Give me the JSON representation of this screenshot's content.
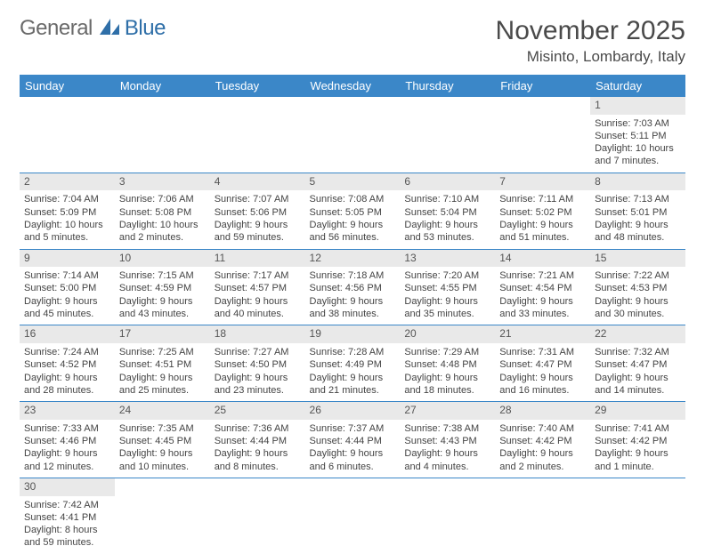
{
  "logo": {
    "part1": "General",
    "part2": "Blue"
  },
  "title": "November 2025",
  "location": "Misinto, Lombardy, Italy",
  "dayHeaders": [
    "Sunday",
    "Monday",
    "Tuesday",
    "Wednesday",
    "Thursday",
    "Friday",
    "Saturday"
  ],
  "colors": {
    "headerBg": "#3b87c8",
    "dayNumBg": "#e9e9e9",
    "logoBlue": "#2f6fa8",
    "logoGray": "#6a6a6a"
  },
  "weeks": [
    [
      null,
      null,
      null,
      null,
      null,
      null,
      {
        "n": "1",
        "sr": "7:03 AM",
        "ss": "5:11 PM",
        "dl": "10 hours and 7 minutes."
      }
    ],
    [
      {
        "n": "2",
        "sr": "7:04 AM",
        "ss": "5:09 PM",
        "dl": "10 hours and 5 minutes."
      },
      {
        "n": "3",
        "sr": "7:06 AM",
        "ss": "5:08 PM",
        "dl": "10 hours and 2 minutes."
      },
      {
        "n": "4",
        "sr": "7:07 AM",
        "ss": "5:06 PM",
        "dl": "9 hours and 59 minutes."
      },
      {
        "n": "5",
        "sr": "7:08 AM",
        "ss": "5:05 PM",
        "dl": "9 hours and 56 minutes."
      },
      {
        "n": "6",
        "sr": "7:10 AM",
        "ss": "5:04 PM",
        "dl": "9 hours and 53 minutes."
      },
      {
        "n": "7",
        "sr": "7:11 AM",
        "ss": "5:02 PM",
        "dl": "9 hours and 51 minutes."
      },
      {
        "n": "8",
        "sr": "7:13 AM",
        "ss": "5:01 PM",
        "dl": "9 hours and 48 minutes."
      }
    ],
    [
      {
        "n": "9",
        "sr": "7:14 AM",
        "ss": "5:00 PM",
        "dl": "9 hours and 45 minutes."
      },
      {
        "n": "10",
        "sr": "7:15 AM",
        "ss": "4:59 PM",
        "dl": "9 hours and 43 minutes."
      },
      {
        "n": "11",
        "sr": "7:17 AM",
        "ss": "4:57 PM",
        "dl": "9 hours and 40 minutes."
      },
      {
        "n": "12",
        "sr": "7:18 AM",
        "ss": "4:56 PM",
        "dl": "9 hours and 38 minutes."
      },
      {
        "n": "13",
        "sr": "7:20 AM",
        "ss": "4:55 PM",
        "dl": "9 hours and 35 minutes."
      },
      {
        "n": "14",
        "sr": "7:21 AM",
        "ss": "4:54 PM",
        "dl": "9 hours and 33 minutes."
      },
      {
        "n": "15",
        "sr": "7:22 AM",
        "ss": "4:53 PM",
        "dl": "9 hours and 30 minutes."
      }
    ],
    [
      {
        "n": "16",
        "sr": "7:24 AM",
        "ss": "4:52 PM",
        "dl": "9 hours and 28 minutes."
      },
      {
        "n": "17",
        "sr": "7:25 AM",
        "ss": "4:51 PM",
        "dl": "9 hours and 25 minutes."
      },
      {
        "n": "18",
        "sr": "7:27 AM",
        "ss": "4:50 PM",
        "dl": "9 hours and 23 minutes."
      },
      {
        "n": "19",
        "sr": "7:28 AM",
        "ss": "4:49 PM",
        "dl": "9 hours and 21 minutes."
      },
      {
        "n": "20",
        "sr": "7:29 AM",
        "ss": "4:48 PM",
        "dl": "9 hours and 18 minutes."
      },
      {
        "n": "21",
        "sr": "7:31 AM",
        "ss": "4:47 PM",
        "dl": "9 hours and 16 minutes."
      },
      {
        "n": "22",
        "sr": "7:32 AM",
        "ss": "4:47 PM",
        "dl": "9 hours and 14 minutes."
      }
    ],
    [
      {
        "n": "23",
        "sr": "7:33 AM",
        "ss": "4:46 PM",
        "dl": "9 hours and 12 minutes."
      },
      {
        "n": "24",
        "sr": "7:35 AM",
        "ss": "4:45 PM",
        "dl": "9 hours and 10 minutes."
      },
      {
        "n": "25",
        "sr": "7:36 AM",
        "ss": "4:44 PM",
        "dl": "9 hours and 8 minutes."
      },
      {
        "n": "26",
        "sr": "7:37 AM",
        "ss": "4:44 PM",
        "dl": "9 hours and 6 minutes."
      },
      {
        "n": "27",
        "sr": "7:38 AM",
        "ss": "4:43 PM",
        "dl": "9 hours and 4 minutes."
      },
      {
        "n": "28",
        "sr": "7:40 AM",
        "ss": "4:42 PM",
        "dl": "9 hours and 2 minutes."
      },
      {
        "n": "29",
        "sr": "7:41 AM",
        "ss": "4:42 PM",
        "dl": "9 hours and 1 minute."
      }
    ],
    [
      {
        "n": "30",
        "sr": "7:42 AM",
        "ss": "4:41 PM",
        "dl": "8 hours and 59 minutes."
      },
      null,
      null,
      null,
      null,
      null,
      null
    ]
  ],
  "labels": {
    "sunrise": "Sunrise:",
    "sunset": "Sunset:",
    "daylight": "Daylight:"
  }
}
